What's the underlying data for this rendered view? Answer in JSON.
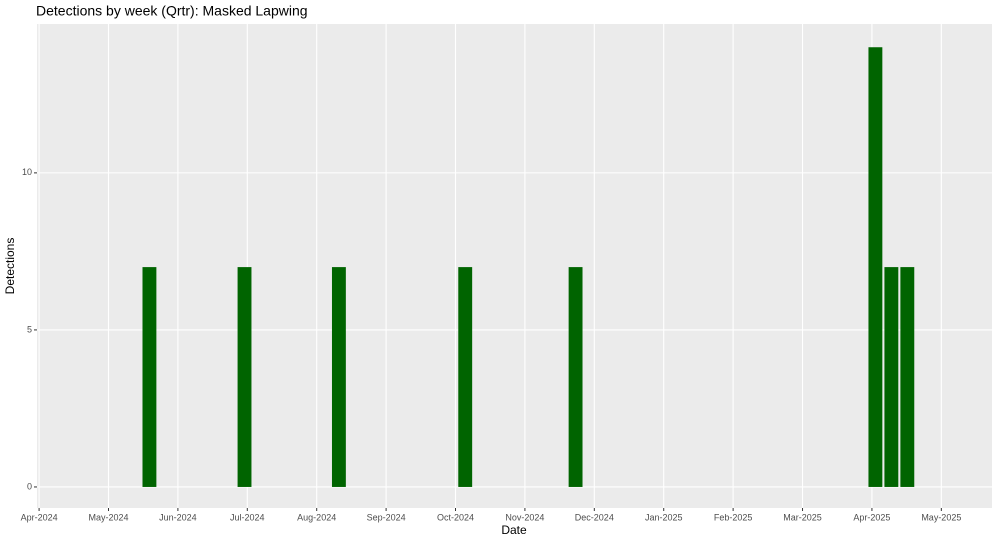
{
  "chart_data": {
    "type": "bar",
    "title": "Detections by week (Qrtr): Masked Lapwing",
    "x_label": "Date",
    "y_label": "Detections",
    "x": [
      5.59,
      6.96,
      8.32,
      10.14,
      11.73,
      16.05,
      16.28,
      16.51
    ],
    "values": [
      7,
      7,
      7,
      7,
      7,
      14,
      7,
      7
    ],
    "color": "#006400",
    "xlim": [
      3.97,
      17.73
    ],
    "xticks": [
      {
        "value": 4,
        "label": "Apr-2024"
      },
      {
        "value": 5,
        "label": "May-2024"
      },
      {
        "value": 6,
        "label": "Jun-2024"
      },
      {
        "value": 7,
        "label": "Jul-2024"
      },
      {
        "value": 8,
        "label": "Aug-2024"
      },
      {
        "value": 9,
        "label": "Sep-2024"
      },
      {
        "value": 10,
        "label": "Oct-2024"
      },
      {
        "value": 11,
        "label": "Nov-2024"
      },
      {
        "value": 12,
        "label": "Dec-2024"
      },
      {
        "value": 13,
        "label": "Jan-2025"
      },
      {
        "value": 14,
        "label": "Feb-2025"
      },
      {
        "value": 15,
        "label": "Mar-2025"
      },
      {
        "value": 16,
        "label": "Apr-2025"
      },
      {
        "value": 17,
        "label": "May-2025"
      }
    ],
    "ylim": [
      -0.67,
      14.74
    ],
    "yticks": [
      0,
      5,
      10
    ],
    "grid": true
  }
}
